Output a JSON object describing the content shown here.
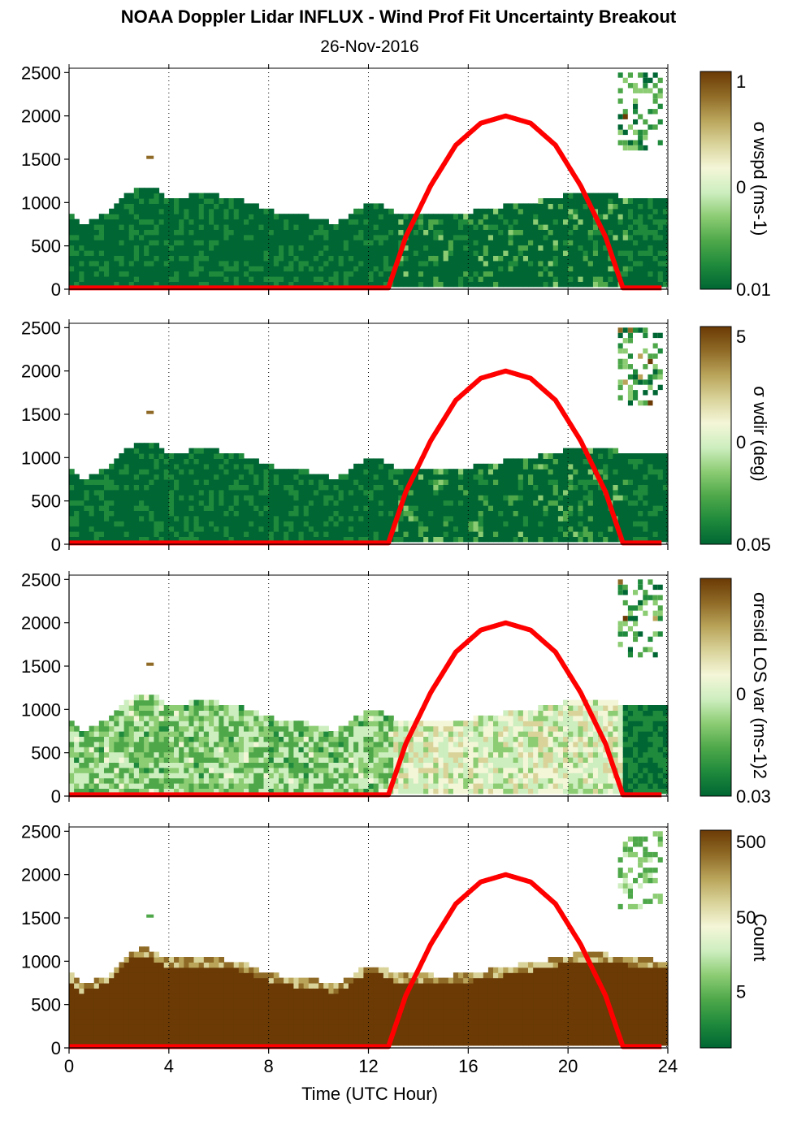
{
  "header": {
    "title": "NOAA Doppler Lidar INFLUX - Wind Prof Fit Uncertainty Breakout",
    "date": "26-Nov-2016"
  },
  "footer": {
    "xlabel": "Time (UTC Hour)"
  },
  "colors": {
    "sun_curve": "#ff0000",
    "colormap": [
      "#006633",
      "#1f8a3c",
      "#4ea84a",
      "#8ccc73",
      "#cdeebf",
      "#f4f6d8",
      "#d9d39a",
      "#b9a45a",
      "#8f6a26",
      "#6b3a05"
    ]
  },
  "chart_data": [
    {
      "type": "heatmap",
      "ylabel": "",
      "ylim": [
        0,
        2550
      ],
      "yticks": [
        "0",
        "500",
        "1000",
        "1500",
        "2000",
        "2500"
      ],
      "xlim": [
        0,
        24
      ],
      "xticks": [
        "0",
        "4",
        "8",
        "12",
        "16",
        "20",
        "24"
      ],
      "grid": "vertical dotted at 4, 8, 12, 16, 20",
      "colorbar": {
        "label": "σ wspd (ms-1)",
        "ticks": [
          "1",
          "0",
          "0.01"
        ]
      },
      "top_profile_m": [
        [
          0,
          900
        ],
        [
          0.5,
          720
        ],
        [
          1.5,
          840
        ],
        [
          2,
          1000
        ],
        [
          2.5,
          1100
        ],
        [
          3,
          1180
        ],
        [
          3.5,
          1120
        ],
        [
          4,
          1000
        ],
        [
          5,
          1060
        ],
        [
          6,
          1050
        ],
        [
          7,
          1000
        ],
        [
          8,
          880
        ],
        [
          9,
          830
        ],
        [
          10,
          800
        ],
        [
          10.5,
          720
        ],
        [
          11,
          770
        ],
        [
          11.5,
          880
        ],
        [
          12,
          950
        ],
        [
          12.5,
          950
        ],
        [
          13,
          850
        ],
        [
          14,
          860
        ],
        [
          15,
          830
        ],
        [
          16,
          860
        ],
        [
          17,
          920
        ],
        [
          18,
          950
        ],
        [
          19,
          1000
        ],
        [
          20,
          1060
        ],
        [
          21,
          1100
        ],
        [
          22,
          1050
        ],
        [
          23,
          1040
        ],
        [
          23.8,
          1020
        ]
      ],
      "sun_elevation_deg": [
        [
          0,
          0
        ],
        [
          12.8,
          0
        ],
        [
          13.5,
          14
        ],
        [
          14.5,
          28
        ],
        [
          15.5,
          39
        ],
        [
          16.5,
          45
        ],
        [
          17.5,
          47
        ],
        [
          18.5,
          45
        ],
        [
          19.5,
          39
        ],
        [
          20.5,
          28
        ],
        [
          21.5,
          14
        ],
        [
          22.2,
          0
        ],
        [
          23.8,
          0
        ]
      ],
      "sun_peak_height_m": 2000
    },
    {
      "type": "heatmap",
      "ylabel": "",
      "ylim": [
        0,
        2550
      ],
      "yticks": [
        "0",
        "500",
        "1000",
        "1500",
        "2000",
        "2500"
      ],
      "xlim": [
        0,
        24
      ],
      "xticks": [
        "0",
        "4",
        "8",
        "12",
        "16",
        "20",
        "24"
      ],
      "grid": "vertical dotted at 4, 8, 12, 16, 20",
      "colorbar": {
        "label": "σ wdir (deg)",
        "ticks": [
          "5",
          "0",
          "0.05"
        ]
      },
      "top_profile_m": [
        [
          0,
          900
        ],
        [
          0.5,
          720
        ],
        [
          1.5,
          840
        ],
        [
          2,
          1000
        ],
        [
          2.5,
          1100
        ],
        [
          3,
          1180
        ],
        [
          3.5,
          1120
        ],
        [
          4,
          1000
        ],
        [
          5,
          1060
        ],
        [
          6,
          1050
        ],
        [
          7,
          1000
        ],
        [
          8,
          880
        ],
        [
          9,
          830
        ],
        [
          10,
          800
        ],
        [
          10.5,
          720
        ],
        [
          11,
          770
        ],
        [
          11.5,
          880
        ],
        [
          12,
          950
        ],
        [
          12.5,
          950
        ],
        [
          13,
          850
        ],
        [
          14,
          860
        ],
        [
          15,
          830
        ],
        [
          16,
          860
        ],
        [
          17,
          920
        ],
        [
          18,
          950
        ],
        [
          19,
          1000
        ],
        [
          20,
          1060
        ],
        [
          21,
          1100
        ],
        [
          22,
          1050
        ],
        [
          23,
          1040
        ],
        [
          23.8,
          1020
        ]
      ],
      "sun_elevation_deg": [
        [
          0,
          0
        ],
        [
          12.8,
          0
        ],
        [
          13.5,
          14
        ],
        [
          14.5,
          28
        ],
        [
          15.5,
          39
        ],
        [
          16.5,
          45
        ],
        [
          17.5,
          47
        ],
        [
          18.5,
          45
        ],
        [
          19.5,
          39
        ],
        [
          20.5,
          28
        ],
        [
          21.5,
          14
        ],
        [
          22.2,
          0
        ],
        [
          23.8,
          0
        ]
      ],
      "sun_peak_height_m": 2000
    },
    {
      "type": "heatmap",
      "ylabel": "",
      "ylim": [
        0,
        2550
      ],
      "yticks": [
        "0",
        "500",
        "1000",
        "1500",
        "2000",
        "2500"
      ],
      "xlim": [
        0,
        24
      ],
      "xticks": [
        "0",
        "4",
        "8",
        "12",
        "16",
        "20",
        "24"
      ],
      "grid": "vertical dotted at 4, 8, 12, 16, 20",
      "colorbar": {
        "label": "σresid LOS var (ms-1)2",
        "ticks": [
          "",
          "0",
          "0.03"
        ]
      },
      "top_profile_m": [
        [
          0,
          900
        ],
        [
          0.5,
          720
        ],
        [
          1.5,
          840
        ],
        [
          2,
          1000
        ],
        [
          2.5,
          1100
        ],
        [
          3,
          1180
        ],
        [
          3.5,
          1120
        ],
        [
          4,
          1000
        ],
        [
          5,
          1060
        ],
        [
          6,
          1050
        ],
        [
          7,
          1000
        ],
        [
          8,
          880
        ],
        [
          9,
          830
        ],
        [
          10,
          800
        ],
        [
          10.5,
          720
        ],
        [
          11,
          770
        ],
        [
          11.5,
          880
        ],
        [
          12,
          950
        ],
        [
          12.5,
          950
        ],
        [
          13,
          850
        ],
        [
          14,
          860
        ],
        [
          15,
          830
        ],
        [
          16,
          860
        ],
        [
          17,
          920
        ],
        [
          18,
          950
        ],
        [
          19,
          1000
        ],
        [
          20,
          1060
        ],
        [
          21,
          1100
        ],
        [
          22,
          1050
        ],
        [
          23,
          1040
        ],
        [
          23.8,
          1020
        ]
      ],
      "sun_elevation_deg": [
        [
          0,
          0
        ],
        [
          12.8,
          0
        ],
        [
          13.5,
          14
        ],
        [
          14.5,
          28
        ],
        [
          15.5,
          39
        ],
        [
          16.5,
          45
        ],
        [
          17.5,
          47
        ],
        [
          18.5,
          45
        ],
        [
          19.5,
          39
        ],
        [
          20.5,
          28
        ],
        [
          21.5,
          14
        ],
        [
          22.2,
          0
        ],
        [
          23.8,
          0
        ]
      ],
      "sun_peak_height_m": 2000
    },
    {
      "type": "heatmap",
      "ylabel": "",
      "ylim": [
        0,
        2550
      ],
      "yticks": [
        "0",
        "500",
        "1000",
        "1500",
        "2000",
        "2500"
      ],
      "xlim": [
        0,
        24
      ],
      "xticks": [
        "0",
        "4",
        "8",
        "12",
        "16",
        "20",
        "24"
      ],
      "grid": "vertical dotted at 4, 8, 12, 16, 20",
      "colorbar": {
        "label": "Count",
        "ticks": [
          "500",
          "50",
          "5"
        ]
      },
      "top_profile_m": [
        [
          0,
          850
        ],
        [
          0.5,
          700
        ],
        [
          1.5,
          800
        ],
        [
          2,
          950
        ],
        [
          2.5,
          1080
        ],
        [
          3,
          1150
        ],
        [
          3.5,
          1080
        ],
        [
          4,
          1000
        ],
        [
          5,
          1020
        ],
        [
          6,
          1000
        ],
        [
          7,
          950
        ],
        [
          8,
          830
        ],
        [
          9,
          780
        ],
        [
          10,
          760
        ],
        [
          10.5,
          700
        ],
        [
          11,
          740
        ],
        [
          11.5,
          850
        ],
        [
          12,
          930
        ],
        [
          12.5,
          920
        ],
        [
          13,
          830
        ],
        [
          14,
          830
        ],
        [
          15,
          800
        ],
        [
          16,
          830
        ],
        [
          17,
          880
        ],
        [
          18,
          930
        ],
        [
          19,
          980
        ],
        [
          20,
          1040
        ],
        [
          21,
          1080
        ],
        [
          22,
          1030
        ],
        [
          23,
          1000
        ],
        [
          23.8,
          980
        ]
      ],
      "sun_elevation_deg": [
        [
          0,
          0
        ],
        [
          12.8,
          0
        ],
        [
          13.5,
          14
        ],
        [
          14.5,
          28
        ],
        [
          15.5,
          39
        ],
        [
          16.5,
          45
        ],
        [
          17.5,
          47
        ],
        [
          18.5,
          45
        ],
        [
          19.5,
          39
        ],
        [
          20.5,
          28
        ],
        [
          21.5,
          14
        ],
        [
          22.2,
          0
        ],
        [
          23.8,
          0
        ]
      ],
      "sun_peak_height_m": 2000
    }
  ]
}
